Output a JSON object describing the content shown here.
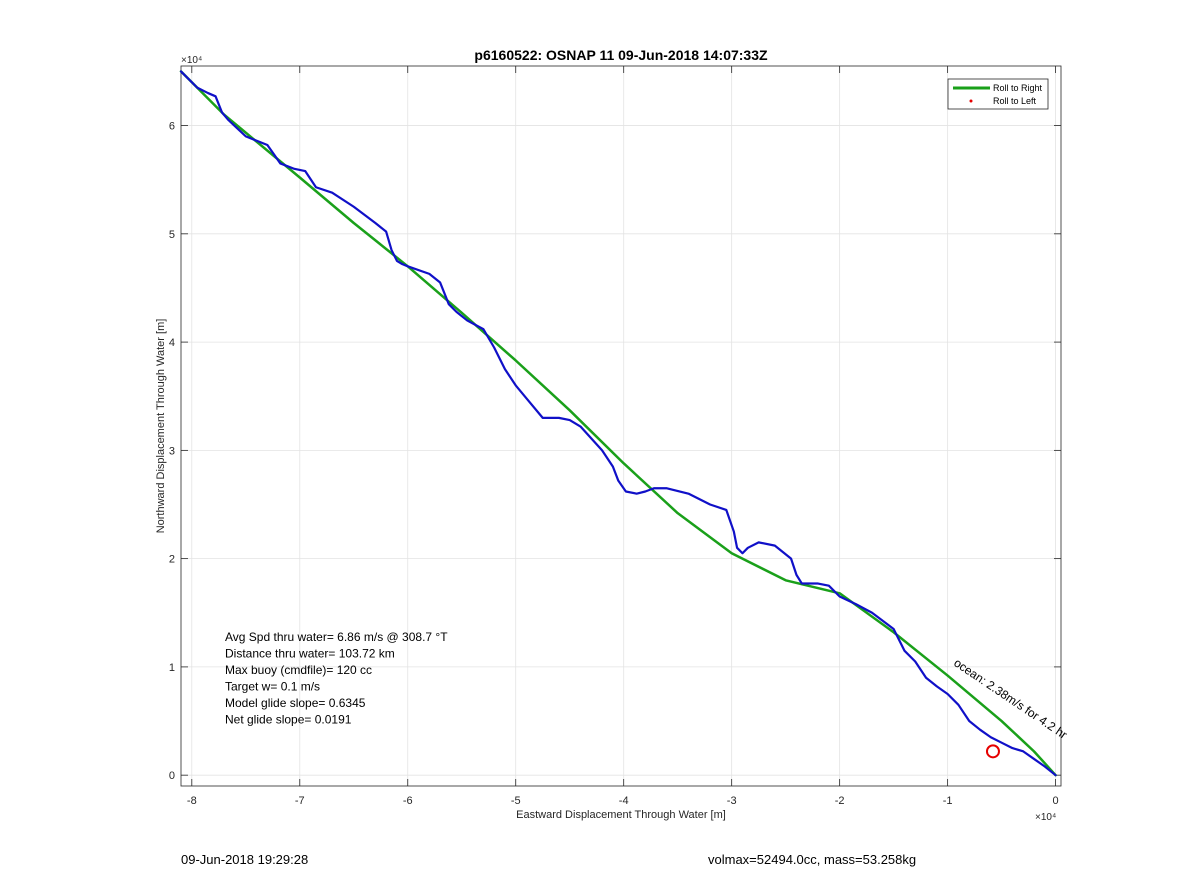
{
  "chart_data": {
    "type": "line",
    "title": "p6160522: OSNAP 11 09-Jun-2018 14:07:33Z",
    "xlabel": "Eastward Displacement Through Water [m]",
    "ylabel": "Northward Displacement Through Water [m]",
    "x_exponent_label": "×10⁴",
    "y_exponent_label": "×10⁴",
    "xlim": [
      -8.1,
      0.05
    ],
    "ylim": [
      -0.1,
      6.55
    ],
    "xticks": [
      -8,
      -7,
      -6,
      -5,
      -4,
      -3,
      -2,
      -1,
      0
    ],
    "xtick_labels": [
      "-8",
      "-7",
      "-6",
      "-5",
      "-4",
      "-3",
      "-2",
      "-1",
      "0"
    ],
    "yticks": [
      0,
      1,
      2,
      3,
      4,
      5,
      6
    ],
    "ytick_labels": [
      "0",
      "1",
      "2",
      "3",
      "4",
      "5",
      "6"
    ],
    "grid": true,
    "legend_position": "top-right",
    "legend": [
      {
        "label": "Roll to Right",
        "color": "#1aa01a",
        "marker": "line"
      },
      {
        "label": "Roll to Left",
        "color": "#e60000",
        "marker": "dot"
      }
    ],
    "series": [
      {
        "name": "Roll to Right",
        "color": "#1aa01a",
        "x": [
          -8.1,
          -7.7,
          -7.0,
          -6.5,
          -6.0,
          -5.5,
          -5.0,
          -4.5,
          -4.0,
          -3.5,
          -3.0,
          -2.5,
          -2.0,
          -1.5,
          -1.0,
          -0.5,
          -0.2,
          0.0
        ],
        "y": [
          6.5,
          6.1,
          5.52,
          5.1,
          4.7,
          4.27,
          3.83,
          3.37,
          2.88,
          2.42,
          2.05,
          1.8,
          1.68,
          1.32,
          0.92,
          0.5,
          0.22,
          0.0
        ]
      },
      {
        "name": "",
        "color": "#1010c8",
        "x": [
          -8.1,
          -7.95,
          -7.85,
          -7.78,
          -7.72,
          -7.66,
          -7.5,
          -7.3,
          -7.18,
          -7.05,
          -6.95,
          -6.85,
          -6.7,
          -6.5,
          -6.3,
          -6.2,
          -6.15,
          -6.1,
          -6.05,
          -6.0,
          -5.8,
          -5.7,
          -5.62,
          -5.55,
          -5.45,
          -5.3,
          -5.2,
          -5.1,
          -5.0,
          -4.9,
          -4.75,
          -4.6,
          -4.5,
          -4.4,
          -4.2,
          -4.1,
          -4.05,
          -3.98,
          -3.88,
          -3.8,
          -3.72,
          -3.6,
          -3.4,
          -3.2,
          -3.05,
          -2.98,
          -2.95,
          -2.9,
          -2.85,
          -2.75,
          -2.6,
          -2.45,
          -2.4,
          -2.35,
          -2.3,
          -2.2,
          -2.1,
          -2.0,
          -1.85,
          -1.7,
          -1.5,
          -1.4,
          -1.3,
          -1.2,
          -1.1,
          -1.0,
          -0.9,
          -0.8,
          -0.7,
          -0.6,
          -0.5,
          -0.4,
          -0.3,
          -0.2,
          -0.1,
          0.0
        ],
        "y": [
          6.5,
          6.35,
          6.3,
          6.27,
          6.12,
          6.05,
          5.9,
          5.82,
          5.65,
          5.6,
          5.58,
          5.43,
          5.38,
          5.25,
          5.1,
          5.02,
          4.85,
          4.75,
          4.72,
          4.7,
          4.63,
          4.55,
          4.35,
          4.28,
          4.2,
          4.12,
          3.95,
          3.75,
          3.6,
          3.48,
          3.3,
          3.3,
          3.28,
          3.22,
          3.0,
          2.85,
          2.72,
          2.62,
          2.6,
          2.62,
          2.65,
          2.65,
          2.6,
          2.5,
          2.45,
          2.25,
          2.1,
          2.05,
          2.1,
          2.15,
          2.12,
          2.0,
          1.85,
          1.77,
          1.77,
          1.77,
          1.75,
          1.65,
          1.58,
          1.5,
          1.35,
          1.15,
          1.05,
          0.9,
          0.82,
          0.75,
          0.65,
          0.5,
          0.42,
          0.35,
          0.3,
          0.25,
          0.22,
          0.15,
          0.08,
          0.0
        ]
      }
    ],
    "markers": [
      {
        "type": "circle",
        "x": -0.58,
        "y": 0.22,
        "color": "#e60000"
      }
    ],
    "annotations": [
      {
        "text": "ocean: 2.38m/s for 4.2 hr",
        "x": -0.95,
        "y": 1.02,
        "rotation_deg": 34,
        "color": "#000000"
      }
    ],
    "stats_text": [
      "Avg Spd thru water=  6.86 m/s @ 308.7 °T",
      "Distance thru water= 103.72 km",
      "Max buoy (cmdfile)= 120 cc",
      "Target w= 0.1 m/s",
      "Model glide slope= 0.6345",
      "Net glide slope= 0.0191"
    ]
  },
  "footer": {
    "date": "09-Jun-2018 19:29:28",
    "info": "volmax=52494.0cc, mass=53.258kg"
  }
}
